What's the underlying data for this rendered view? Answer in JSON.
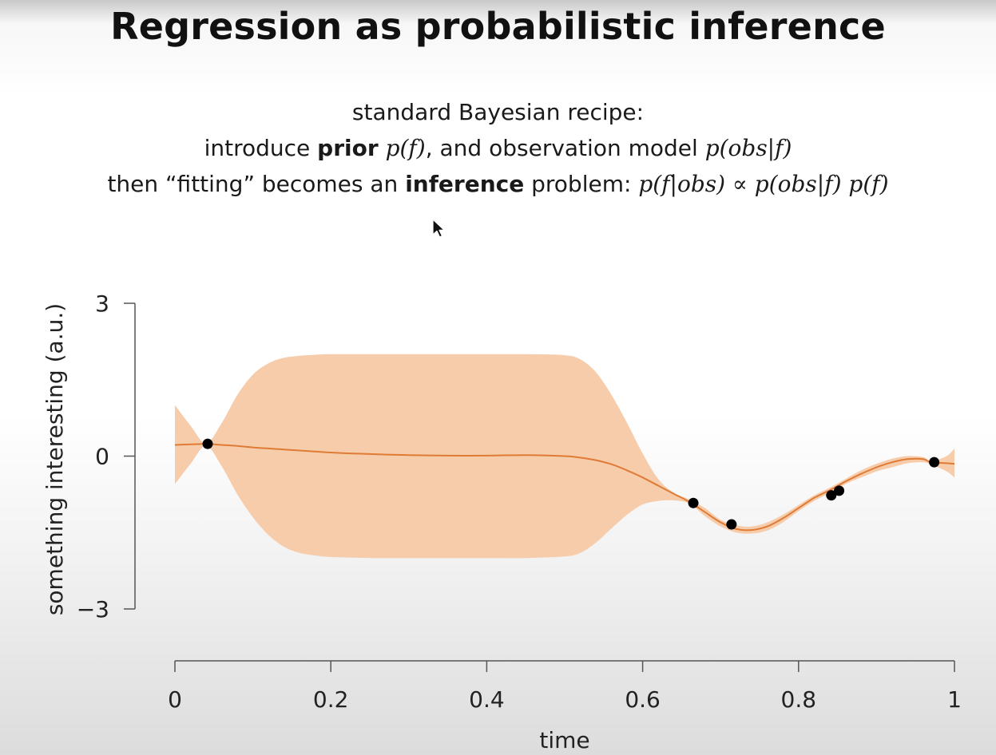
{
  "slide": {
    "title": "Regression as probabilistic inference",
    "line1": "standard Bayesian recipe:",
    "line2": {
      "pre": "introduce ",
      "bold": "prior",
      "sp1": " ",
      "pf": "p(f)",
      "mid": ", and observation model ",
      "pobs": "p(obs|f)"
    },
    "line3": {
      "pre": "then “fitting” becomes an ",
      "bold": "inference",
      "mid": " problem: ",
      "formula": "p(f|obs) ∝ p(obs|f) p(f)"
    }
  },
  "chart_data": {
    "type": "line",
    "xlabel": "time",
    "ylabel": "something interesting (a.u.)",
    "xlim": [
      0,
      1
    ],
    "ylim": [
      -3,
      3
    ],
    "xticks": [
      0,
      0.2,
      0.4,
      0.6,
      0.8,
      1
    ],
    "xtick_labels": [
      "0",
      "0.2",
      "0.4",
      "0.6",
      "0.8",
      "1"
    ],
    "yticks": [
      3,
      0,
      -3
    ],
    "ytick_labels": [
      "3",
      "0",
      "−3"
    ],
    "colors": {
      "mean": "#e07b35",
      "band": "#f6c9a6",
      "points": "#000000"
    },
    "x": [
      0,
      0.02,
      0.04,
      0.06,
      0.08,
      0.1,
      0.12,
      0.14,
      0.16,
      0.18,
      0.2,
      0.25,
      0.3,
      0.35,
      0.4,
      0.45,
      0.5,
      0.52,
      0.54,
      0.56,
      0.58,
      0.6,
      0.62,
      0.64,
      0.66,
      0.68,
      0.7,
      0.72,
      0.74,
      0.76,
      0.78,
      0.8,
      0.82,
      0.84,
      0.86,
      0.88,
      0.9,
      0.92,
      0.94,
      0.96,
      0.97,
      0.99,
      1.0
    ],
    "series": [
      {
        "role": "mean",
        "values": [
          0.22,
          0.23,
          0.24,
          0.22,
          0.2,
          0.17,
          0.15,
          0.13,
          0.11,
          0.09,
          0.07,
          0.04,
          0.02,
          0.01,
          0.01,
          0.02,
          0.0,
          -0.03,
          -0.08,
          -0.16,
          -0.28,
          -0.42,
          -0.58,
          -0.74,
          -0.9,
          -1.1,
          -1.3,
          -1.43,
          -1.45,
          -1.38,
          -1.22,
          -1.02,
          -0.82,
          -0.67,
          -0.5,
          -0.35,
          -0.22,
          -0.12,
          -0.06,
          -0.06,
          -0.12,
          -0.14,
          -0.15
        ]
      },
      {
        "role": "upper",
        "values": [
          1.0,
          0.6,
          0.25,
          0.65,
          1.2,
          1.6,
          1.82,
          1.93,
          1.97,
          1.99,
          2.0,
          2.0,
          2.0,
          2.0,
          2.0,
          2.0,
          1.98,
          1.9,
          1.65,
          1.2,
          0.65,
          0.05,
          -0.45,
          -0.72,
          -0.85,
          -1.02,
          -1.25,
          -1.36,
          -1.38,
          -1.3,
          -1.15,
          -0.96,
          -0.77,
          -0.62,
          -0.45,
          -0.28,
          -0.15,
          -0.05,
          0.0,
          -0.02,
          -0.1,
          0.0,
          0.15
        ]
      },
      {
        "role": "lower",
        "values": [
          -0.55,
          -0.15,
          0.2,
          -0.2,
          -0.75,
          -1.2,
          -1.55,
          -1.78,
          -1.9,
          -1.95,
          -1.98,
          -2.0,
          -2.0,
          -2.0,
          -2.0,
          -2.0,
          -1.97,
          -1.9,
          -1.7,
          -1.42,
          -1.15,
          -0.95,
          -0.88,
          -0.87,
          -0.93,
          -1.18,
          -1.38,
          -1.5,
          -1.52,
          -1.46,
          -1.3,
          -1.08,
          -0.88,
          -0.72,
          -0.55,
          -0.42,
          -0.3,
          -0.22,
          -0.14,
          -0.12,
          -0.16,
          -0.3,
          -0.42
        ]
      }
    ],
    "points": [
      {
        "x": 0.042,
        "y": 0.24
      },
      {
        "x": 0.665,
        "y": -0.92
      },
      {
        "x": 0.714,
        "y": -1.34
      },
      {
        "x": 0.842,
        "y": -0.77
      },
      {
        "x": 0.852,
        "y": -0.68
      },
      {
        "x": 0.974,
        "y": -0.12
      }
    ]
  }
}
